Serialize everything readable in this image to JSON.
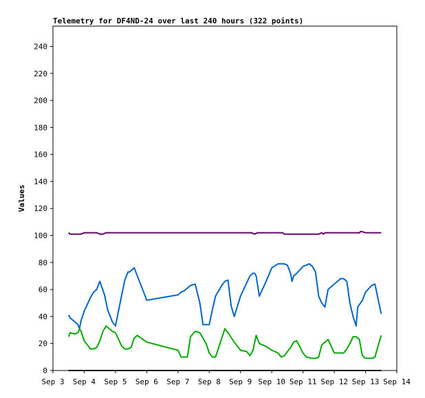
{
  "chart_data": {
    "type": "line",
    "title": "Telemetry for DF4ND-24 over last 240 hours (322 points)",
    "ylabel": "Values",
    "xlabel": "",
    "ylim": [
      0,
      255
    ],
    "xlim": [
      3.0,
      14.0
    ],
    "y_ticks": [
      0,
      20,
      40,
      60,
      80,
      100,
      120,
      140,
      160,
      180,
      200,
      220,
      240
    ],
    "x_ticks": [
      {
        "label": "Sep 3",
        "value": 3.0
      },
      {
        "label": "Sep 4",
        "value": 4.0
      },
      {
        "label": "Sep 5",
        "value": 5.0
      },
      {
        "label": "Sep 6",
        "value": 6.0
      },
      {
        "label": "Sep 7",
        "value": 7.0
      },
      {
        "label": "Sep 8",
        "value": 8.0
      },
      {
        "label": "Sep 9",
        "value": 9.0
      },
      {
        "label": "Sep 10",
        "value": 10.0
      },
      {
        "label": "Sep 11",
        "value": 11.0
      },
      {
        "label": "Sep 12",
        "value": 12.0
      },
      {
        "label": "Sep 13",
        "value": 13.0
      },
      {
        "label": "Sep 14",
        "value": 14.0
      }
    ],
    "series": [
      {
        "color": "#660066",
        "x": [
          3.5,
          3.55,
          3.7,
          3.9,
          4.0,
          4.2,
          4.4,
          4.5,
          4.6,
          4.7,
          5.0,
          6.0,
          7.0,
          8.0,
          9.0,
          9.35,
          9.45,
          9.55,
          10.0,
          10.35,
          10.4,
          11.0,
          11.5,
          11.6,
          11.65,
          11.7,
          12.0,
          12.5,
          12.8,
          12.85,
          13.0,
          13.3,
          13.5
        ],
        "values": [
          102,
          101,
          101,
          101,
          102,
          102,
          102,
          101,
          101,
          102,
          102,
          102,
          102,
          102,
          102,
          102,
          101,
          102,
          102,
          102,
          101,
          101,
          101,
          102,
          101,
          102,
          102,
          102,
          102,
          103,
          102,
          102,
          102
        ]
      },
      {
        "color": "#0066cc",
        "x": [
          3.5,
          3.55,
          3.7,
          3.8,
          3.85,
          3.9,
          4.0,
          4.2,
          4.3,
          4.4,
          4.5,
          4.65,
          4.75,
          4.9,
          5.0,
          5.2,
          5.3,
          5.4,
          5.45,
          5.5,
          5.6,
          6.0,
          6.5,
          7.0,
          7.1,
          7.2,
          7.4,
          7.55,
          7.7,
          7.8,
          8.0,
          8.1,
          8.2,
          8.4,
          8.5,
          8.6,
          8.7,
          8.8,
          9.0,
          9.2,
          9.3,
          9.4,
          9.45,
          9.5,
          9.6,
          9.8,
          10.0,
          10.2,
          10.3,
          10.4,
          10.5,
          10.6,
          10.65,
          10.7,
          10.8,
          11.0,
          11.2,
          11.3,
          11.4,
          11.5,
          11.6,
          11.7,
          11.8,
          12.0,
          12.2,
          12.3,
          12.4,
          12.5,
          12.6,
          12.7,
          12.75,
          12.9,
          13.0,
          13.2,
          13.3,
          13.5
        ],
        "values": [
          41,
          39,
          36,
          34,
          31,
          37,
          44,
          54,
          58,
          60,
          66,
          56,
          45,
          36,
          33,
          56,
          67,
          73,
          73,
          74,
          76,
          52,
          54,
          56,
          58,
          59,
          63,
          64,
          50,
          34,
          34,
          45,
          55,
          63,
          66,
          67,
          48,
          40,
          55,
          65,
          70,
          72,
          72,
          70,
          55,
          65,
          76,
          79,
          79,
          79,
          78,
          72,
          66,
          70,
          72,
          77,
          79,
          77,
          73,
          55,
          50,
          47,
          60,
          64,
          68,
          68,
          66,
          50,
          40,
          33,
          47,
          52,
          58,
          63,
          64,
          42
        ]
      },
      {
        "color": "#00aa00",
        "x": [
          3.5,
          3.55,
          3.7,
          3.8,
          3.85,
          3.9,
          4.0,
          4.1,
          4.2,
          4.3,
          4.4,
          4.5,
          4.6,
          4.7,
          4.8,
          4.9,
          5.0,
          5.2,
          5.3,
          5.4,
          5.5,
          5.6,
          5.7,
          6.0,
          6.5,
          7.0,
          7.1,
          7.3,
          7.4,
          7.55,
          7.7,
          7.9,
          8.0,
          8.1,
          8.2,
          8.4,
          8.5,
          8.6,
          8.8,
          9.0,
          9.2,
          9.3,
          9.4,
          9.5,
          9.6,
          9.8,
          10.0,
          10.2,
          10.3,
          10.4,
          10.6,
          10.65,
          10.7,
          10.8,
          11.0,
          11.1,
          11.3,
          11.4,
          11.5,
          11.6,
          11.7,
          11.8,
          12.0,
          12.2,
          12.3,
          12.4,
          12.5,
          12.6,
          12.7,
          12.8,
          12.9,
          13.0,
          13.2,
          13.3,
          13.4,
          13.5
        ],
        "values": [
          25,
          28,
          27,
          28,
          31,
          29,
          22,
          19,
          16,
          16,
          17,
          22,
          29,
          33,
          31,
          29,
          28,
          18,
          16,
          16,
          17,
          24,
          26,
          21,
          18,
          15,
          10,
          10,
          25,
          29,
          28,
          20,
          13,
          10,
          10,
          24,
          31,
          28,
          21,
          15,
          14,
          11,
          15,
          26,
          20,
          18,
          15,
          13,
          10,
          11,
          17,
          19,
          21,
          22,
          13,
          10,
          9,
          9,
          10,
          19,
          21,
          23,
          13,
          13,
          13,
          16,
          20,
          25,
          25,
          23,
          11,
          9,
          9,
          10,
          18,
          26
        ]
      },
      {
        "color": "#000000",
        "x": [
          3.5,
          13.5
        ],
        "values": [
          0,
          0
        ]
      }
    ]
  }
}
